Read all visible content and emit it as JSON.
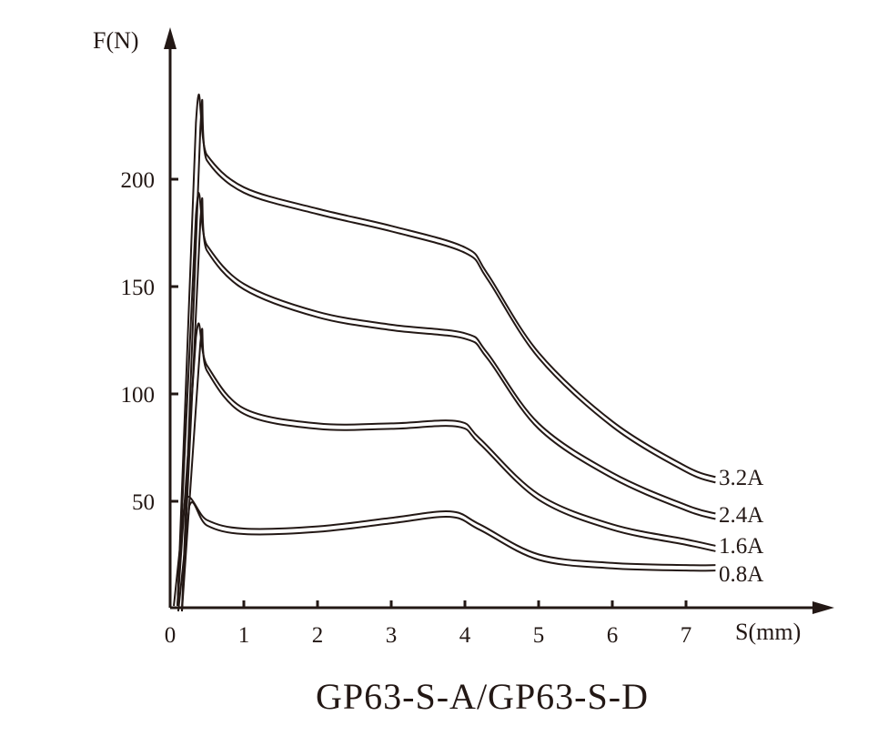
{
  "chart_data": {
    "type": "line",
    "title": "GP63-S-A/GP63-S-D",
    "xlabel": "S(mm)",
    "ylabel": "F(N)",
    "xlim": [
      0,
      7.5
    ],
    "ylim": [
      0,
      230
    ],
    "x_ticks": [
      "0",
      "1",
      "2",
      "3",
      "4",
      "5",
      "6",
      "7"
    ],
    "y_ticks": [
      "50",
      "100",
      "150",
      "200"
    ],
    "grid": false,
    "legend_position": "inline-right",
    "series": [
      {
        "name": "3.2A",
        "x": [
          0.1,
          0.35,
          0.5,
          1,
          2,
          3,
          4,
          4.3,
          5,
          6,
          7,
          7.4
        ],
        "values": [
          0,
          225,
          210,
          195,
          185,
          177,
          167,
          155,
          118,
          86,
          65,
          60
        ]
      },
      {
        "name": "2.4A",
        "x": [
          0.1,
          0.35,
          0.5,
          1,
          2,
          3,
          4,
          4.3,
          5,
          6,
          7,
          7.4
        ],
        "values": [
          0,
          182,
          168,
          150,
          137,
          131,
          127,
          118,
          85,
          62,
          47,
          43
        ]
      },
      {
        "name": "1.6A",
        "x": [
          0.1,
          0.35,
          0.5,
          1,
          2,
          3,
          3.9,
          4.2,
          5,
          6,
          7,
          7.4
        ],
        "values": [
          0,
          125,
          112,
          92,
          85,
          85,
          86,
          78,
          52,
          38,
          31,
          28
        ]
      },
      {
        "name": "0.8A",
        "x": [
          0.05,
          0.2,
          0.5,
          1,
          2,
          3,
          3.8,
          4.2,
          5,
          6,
          7,
          7.4
        ],
        "values": [
          0,
          49,
          40,
          36,
          37,
          41,
          44,
          38,
          24,
          20,
          19,
          19
        ]
      }
    ]
  },
  "labels": {
    "y_axis": "F(N)",
    "x_axis": "S(mm)",
    "title": "GP63-S-A/GP63-S-D",
    "series": [
      "3.2A",
      "2.4A",
      "1.6A",
      "0.8A"
    ]
  }
}
